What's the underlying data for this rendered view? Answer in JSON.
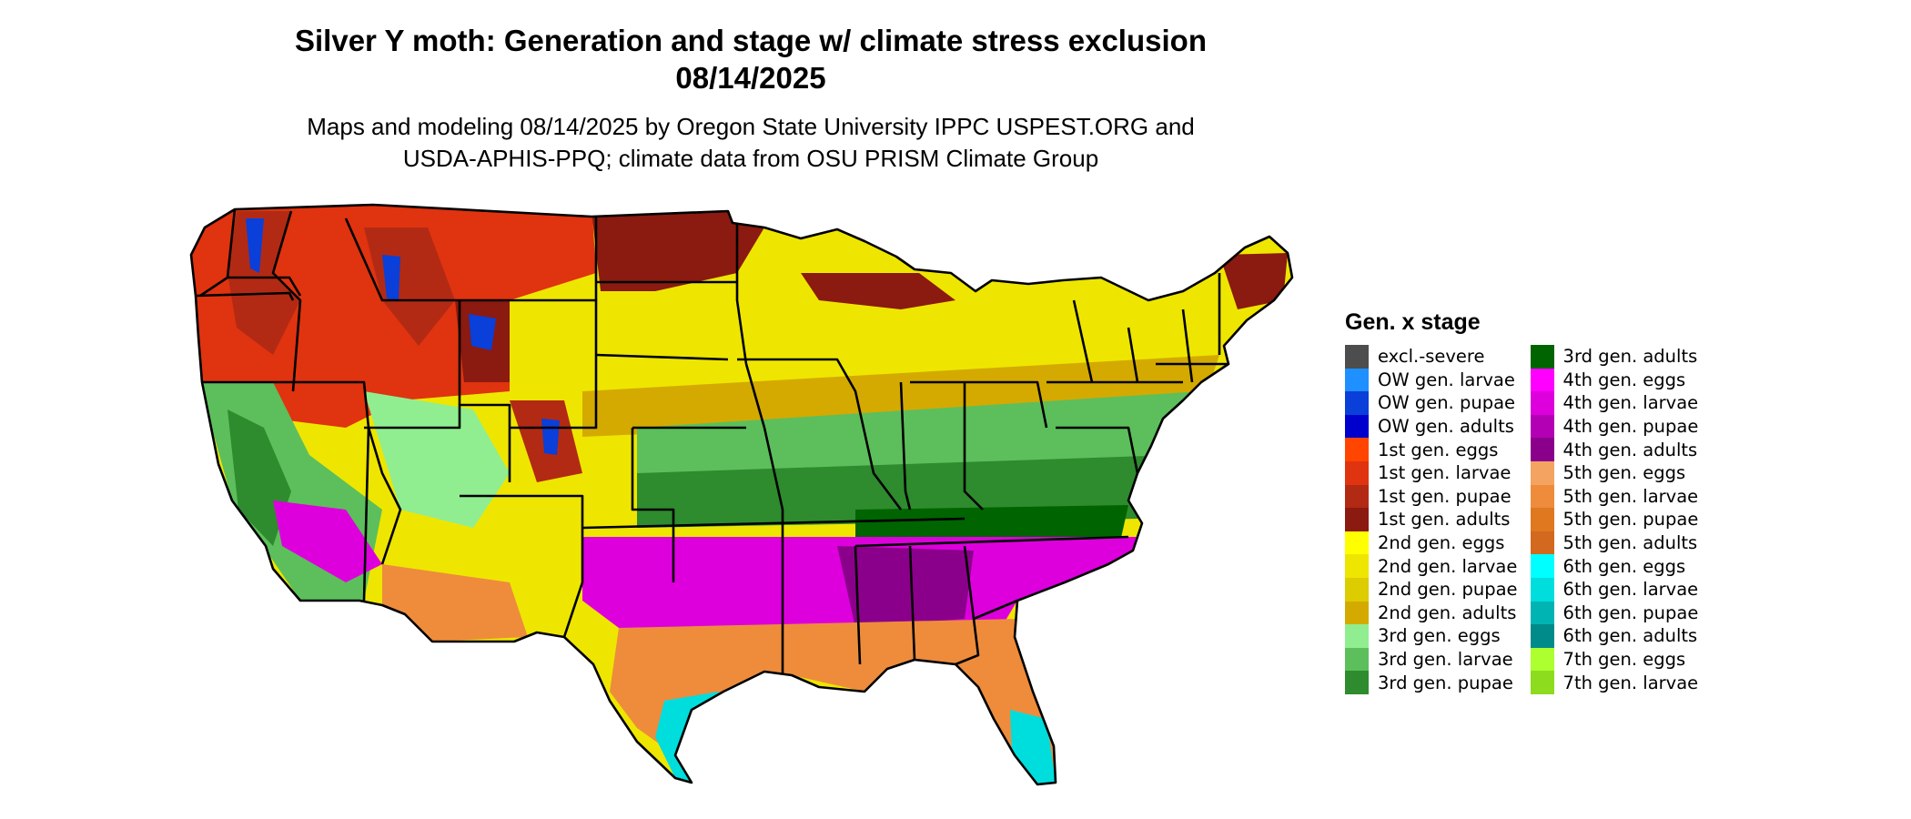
{
  "title_line1": "Silver Y moth: Generation and stage w/ climate stress exclusion",
  "title_line2": "08/14/2025",
  "subtitle_line1": "Maps and modeling 08/14/2025 by Oregon State University IPPC USPEST.ORG and",
  "subtitle_line2": "USDA-APHIS-PPQ; climate data from OSU PRISM Climate Group",
  "legend_title": "Gen. x stage",
  "legend_left": [
    {
      "label": "excl.-severe",
      "color": "#4d4d4d"
    },
    {
      "label": "OW gen. larvae",
      "color": "#1e90ff"
    },
    {
      "label": "OW gen. pupae",
      "color": "#0a3fd9"
    },
    {
      "label": "OW gen. adults",
      "color": "#0000cd"
    },
    {
      "label": "1st gen. eggs",
      "color": "#ff4500"
    },
    {
      "label": "1st gen. larvae",
      "color": "#e0330f"
    },
    {
      "label": "1st gen. pupae",
      "color": "#b22a14"
    },
    {
      "label": "1st gen. adults",
      "color": "#8b1a10"
    },
    {
      "label": "2nd gen. eggs",
      "color": "#ffff00"
    },
    {
      "label": "2nd gen. larvae",
      "color": "#eee600"
    },
    {
      "label": "2nd gen. pupae",
      "color": "#ddcc00"
    },
    {
      "label": "2nd gen. adults",
      "color": "#d4aa00"
    },
    {
      "label": "3rd gen. eggs",
      "color": "#90ee90"
    },
    {
      "label": "3rd gen. larvae",
      "color": "#5cbf5c"
    },
    {
      "label": "3rd gen. pupae",
      "color": "#2e8b2e"
    }
  ],
  "legend_right": [
    {
      "label": "3rd gen. adults",
      "color": "#006400"
    },
    {
      "label": "4th gen. eggs",
      "color": "#ff00ff"
    },
    {
      "label": "4th gen. larvae",
      "color": "#dd00dd"
    },
    {
      "label": "4th gen. pupae",
      "color": "#b400b4"
    },
    {
      "label": "4th gen. adults",
      "color": "#8b008b"
    },
    {
      "label": "5th gen. eggs",
      "color": "#f4a460"
    },
    {
      "label": "5th gen. larvae",
      "color": "#ee8c3c"
    },
    {
      "label": "5th gen. pupae",
      "color": "#e07820"
    },
    {
      "label": "5th gen. adults",
      "color": "#d2691e"
    },
    {
      "label": "6th gen. eggs",
      "color": "#00ffff"
    },
    {
      "label": "6th gen. larvae",
      "color": "#00dddd"
    },
    {
      "label": "6th gen. pupae",
      "color": "#00b4b4"
    },
    {
      "label": "6th gen. adults",
      "color": "#008b8b"
    },
    {
      "label": "7th gen. eggs",
      "color": "#adff2f"
    },
    {
      "label": "7th gen. larvae",
      "color": "#8ddc1e"
    }
  ]
}
